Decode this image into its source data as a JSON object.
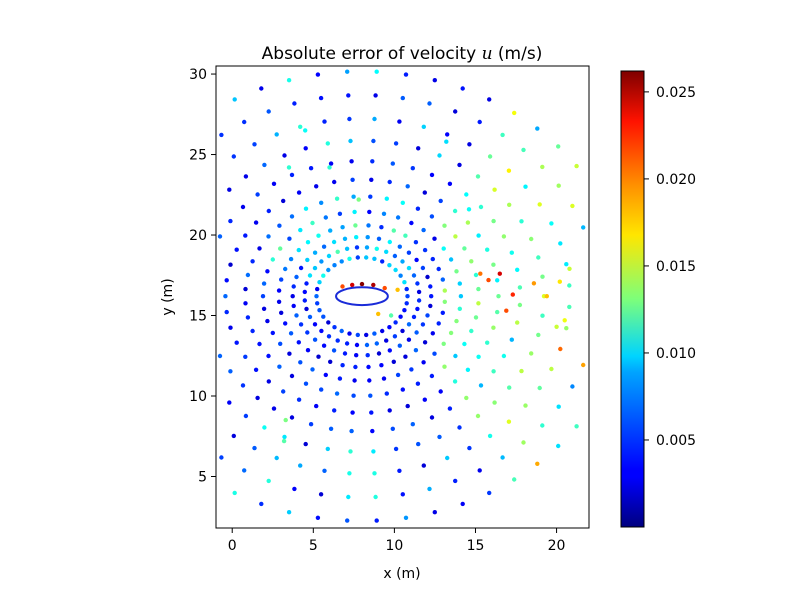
{
  "chart_data": {
    "type": "scatter",
    "title_main": "Absolute error of velocity ",
    "title_var": "u",
    "title_unit": " (m/s)",
    "xlabel": "x (m)",
    "ylabel": "y (m)",
    "xlim": [
      -1,
      22
    ],
    "ylim": [
      1.8,
      30.5
    ],
    "xticks": [
      0,
      5,
      10,
      15,
      20
    ],
    "yticks": [
      5,
      10,
      15,
      20,
      25,
      30
    ],
    "xtick_labels": [
      "0",
      "5",
      "10",
      "15",
      "20"
    ],
    "ytick_labels": [
      "5",
      "10",
      "15",
      "20",
      "25",
      "30"
    ],
    "colorbar": {
      "colormap": "jet",
      "min": 0.0,
      "max": 0.0262,
      "ticks": [
        0.005,
        0.01,
        0.015,
        0.02,
        0.025
      ],
      "tick_labels": [
        "0.005",
        "0.010",
        "0.015",
        "0.020",
        "0.025"
      ]
    },
    "cylinder": {
      "center": [
        8.0,
        16.2
      ],
      "semi_axes": [
        1.6,
        0.55
      ]
    },
    "mesh": {
      "description_values": "polar grid of sample points around elliptical cylinder",
      "center": [
        8.0,
        16.2
      ],
      "rings": [
        {
          "r": 2.3,
          "n": 34
        },
        {
          "r": 2.9,
          "n": 36
        },
        {
          "r": 3.5,
          "n": 38
        },
        {
          "r": 4.2,
          "n": 40
        },
        {
          "r": 5.0,
          "n": 42
        },
        {
          "r": 5.9,
          "n": 44
        },
        {
          "r": 6.9,
          "n": 46
        },
        {
          "r": 8.0,
          "n": 48
        },
        {
          "r": 9.2,
          "n": 50
        },
        {
          "r": 10.5,
          "n": 52
        },
        {
          "r": 11.9,
          "n": 54
        },
        {
          "r": 13.3,
          "n": 56
        }
      ]
    },
    "points": [
      [
        16.5,
        17.6,
        0.024
      ],
      [
        15.8,
        17.2,
        0.021
      ],
      [
        17.3,
        16.3,
        0.022
      ],
      [
        16.9,
        15.3,
        0.021
      ],
      [
        18.6,
        17.0,
        0.019
      ],
      [
        20.8,
        17.9,
        0.015
      ],
      [
        20.2,
        17.1,
        0.017
      ],
      [
        19.4,
        16.2,
        0.018
      ],
      [
        20.0,
        14.3,
        0.015
      ],
      [
        20.5,
        14.7,
        0.016
      ],
      [
        15.3,
        17.6,
        0.02
      ],
      [
        8.0,
        16.95,
        0.026
      ],
      [
        7.4,
        16.9,
        0.024
      ],
      [
        8.7,
        16.9,
        0.025
      ],
      [
        6.8,
        16.8,
        0.021
      ],
      [
        9.4,
        16.7,
        0.021
      ],
      [
        10.2,
        16.6,
        0.018
      ],
      [
        9.0,
        15.1,
        0.018
      ],
      [
        9.8,
        15.0,
        0.012
      ],
      [
        3.3,
        8.5,
        0.013
      ],
      [
        3.2,
        7.2,
        0.012
      ],
      [
        3.5,
        24.2,
        0.011
      ],
      [
        4.5,
        26.5,
        0.01
      ],
      [
        6.0,
        24.2,
        0.011
      ],
      [
        7.8,
        22.2,
        0.013
      ],
      [
        14.6,
        21.6,
        0.01
      ],
      [
        13.2,
        25.8,
        0.009
      ]
    ]
  }
}
